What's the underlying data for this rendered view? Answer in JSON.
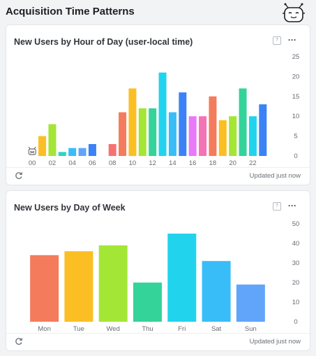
{
  "page": {
    "title": "Acquisition Time Patterns"
  },
  "icons": {
    "mascot": "robot-mascot-icon",
    "help": "help-icon",
    "more": "more-options-icon",
    "refresh": "refresh-icon"
  },
  "more_label": "···",
  "help_label": "?",
  "cards": [
    {
      "title": "New Users by Hour of Day (user-local time)",
      "footer": "Updated just now"
    },
    {
      "title": "New Users by Day of Week",
      "footer": "Updated just now"
    }
  ],
  "chart_data": [
    {
      "type": "bar",
      "title": "New Users by Hour of Day (user-local time)",
      "categories": [
        "00",
        "01",
        "02",
        "03",
        "04",
        "05",
        "06",
        "07",
        "08",
        "09",
        "10",
        "11",
        "12",
        "13",
        "14",
        "15",
        "16",
        "17",
        "18",
        "19",
        "20",
        "21",
        "22",
        "23"
      ],
      "tick_labels": [
        "00",
        "02",
        "04",
        "06",
        "08",
        "10",
        "12",
        "14",
        "16",
        "18",
        "20",
        "22"
      ],
      "values": [
        0,
        5,
        8,
        1,
        2,
        2,
        3,
        0,
        3,
        11,
        17,
        12,
        12,
        21,
        11,
        16,
        10,
        10,
        15,
        9,
        10,
        17,
        10,
        13
      ],
      "colors": [
        "#f47c5c",
        "#fbbf24",
        "#a3e635",
        "#2dd4bf",
        "#38bdf8",
        "#60a5fa",
        "#3b82f6",
        "#a78bfa",
        "#f87171",
        "#f47c5c",
        "#fbbf24",
        "#a3e635",
        "#34d399",
        "#22d3ee",
        "#38bdf8",
        "#3b82f6",
        "#e879f9",
        "#f472b6",
        "#f47c5c",
        "#fbbf24",
        "#a3e635",
        "#34d399",
        "#22d3ee",
        "#3b82f6"
      ],
      "ylim": [
        0,
        25
      ],
      "yticks": [
        0,
        5,
        10,
        15,
        20,
        25
      ],
      "grid": false,
      "y_axis_side": "right"
    },
    {
      "type": "bar",
      "title": "New Users by Day of Week",
      "categories": [
        "Mon",
        "Tue",
        "Wed",
        "Thu",
        "Fri",
        "Sat",
        "Sun"
      ],
      "values": [
        34,
        36,
        39,
        20,
        45,
        31,
        19
      ],
      "colors": [
        "#f47c5c",
        "#fbbf24",
        "#a3e635",
        "#34d399",
        "#22d3ee",
        "#38bdf8",
        "#60a5fa"
      ],
      "ylim": [
        0,
        50
      ],
      "yticks": [
        0,
        10,
        20,
        30,
        40,
        50
      ],
      "grid": false,
      "y_axis_side": "right"
    }
  ]
}
